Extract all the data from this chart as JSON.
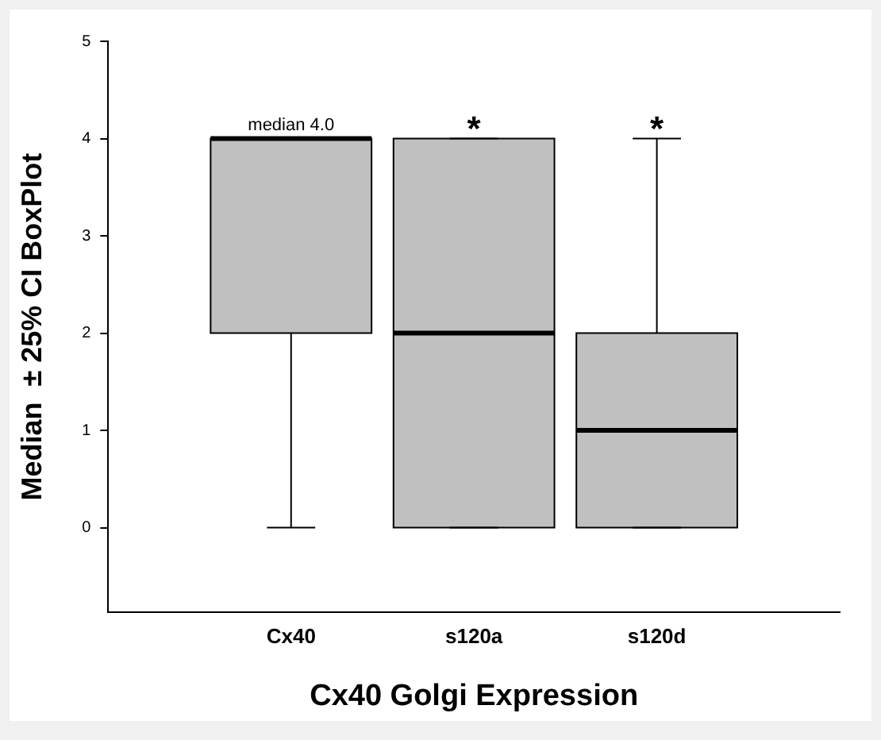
{
  "chart_data": {
    "type": "box",
    "xlabel": "Cx40 Golgi Expression",
    "ylabel": "Median  ± 25% CI BoxPlot",
    "categories": [
      "Cx40",
      "s120a",
      "s120d"
    ],
    "boxes": [
      {
        "low": 0,
        "q1": 2,
        "median": 4,
        "q3": 4,
        "high": 4
      },
      {
        "low": 0,
        "q1": 0,
        "median": 2,
        "q3": 4,
        "high": 4
      },
      {
        "low": 0,
        "q1": 0,
        "median": 1,
        "q3": 2,
        "high": 4
      }
    ],
    "color": "#c0c0c0",
    "ylim": [
      -0.87,
      5
    ],
    "yticks": [
      0,
      1,
      2,
      3,
      4,
      5
    ],
    "grid": false,
    "legend": false,
    "annotations": [
      "median 4.0",
      "*",
      "*"
    ]
  }
}
